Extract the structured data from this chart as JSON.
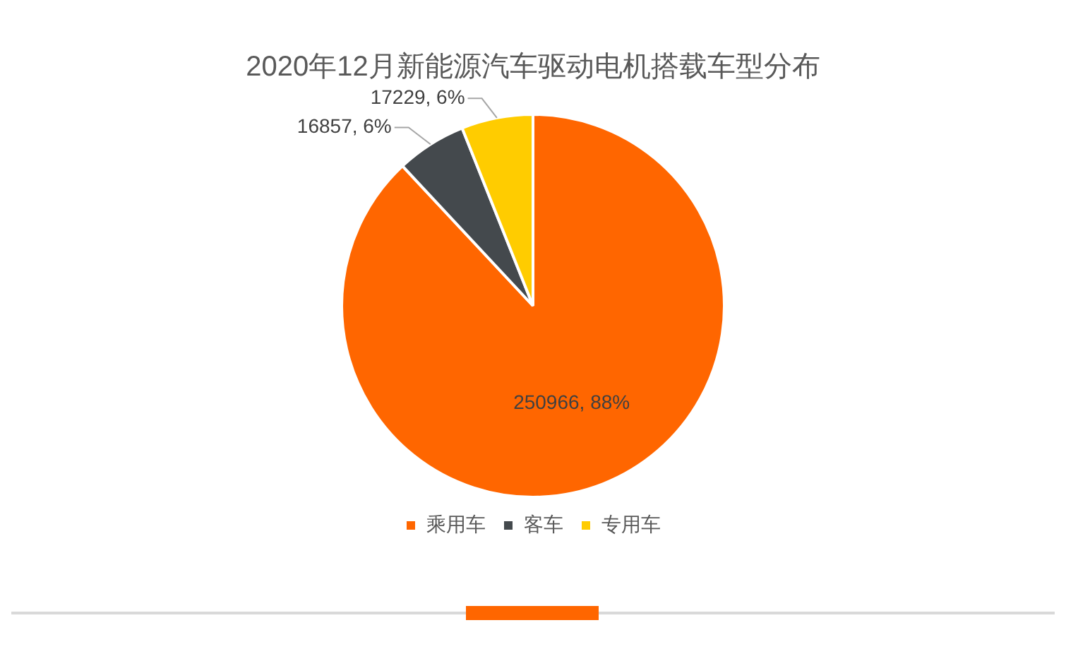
{
  "chart_data": {
    "type": "pie",
    "title": "2020年12月新能源汽车驱动电机搭载车型分布",
    "categories": [
      "乘用车",
      "客车",
      "专用车"
    ],
    "values": [
      250966,
      16857,
      17229
    ],
    "colors": [
      "#ff6600",
      "#44494d",
      "#ffcc00"
    ],
    "value_labels": [
      "250966, 88%",
      "16857, 6%",
      "17229, 6%"
    ],
    "legend": "bottom"
  }
}
